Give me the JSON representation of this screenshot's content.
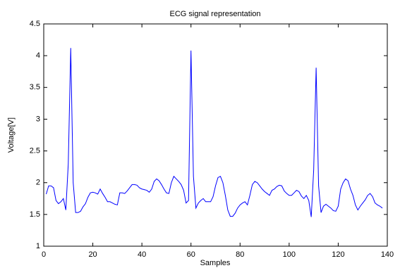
{
  "chart_data": {
    "type": "line",
    "title": "ECG signal representation",
    "xlabel": "Samples",
    "ylabel": "Voltage[V]",
    "x": [
      1,
      2,
      3,
      4,
      5,
      6,
      7,
      8,
      9,
      10,
      11,
      12,
      13,
      14,
      15,
      16,
      17,
      18,
      19,
      20,
      21,
      22,
      23,
      24,
      25,
      26,
      27,
      28,
      29,
      30,
      31,
      32,
      33,
      34,
      35,
      36,
      37,
      38,
      39,
      40,
      41,
      42,
      43,
      44,
      45,
      46,
      47,
      48,
      49,
      50,
      51,
      52,
      53,
      54,
      55,
      56,
      57,
      58,
      59,
      60,
      61,
      62,
      63,
      64,
      65,
      66,
      67,
      68,
      69,
      70,
      71,
      72,
      73,
      74,
      75,
      76,
      77,
      78,
      79,
      80,
      81,
      82,
      83,
      84,
      85,
      86,
      87,
      88,
      89,
      90,
      91,
      92,
      93,
      94,
      95,
      96,
      97,
      98,
      99,
      100,
      101,
      102,
      103,
      104,
      105,
      106,
      107,
      108,
      109,
      110,
      111,
      112,
      113,
      114,
      115,
      116,
      117,
      118,
      119,
      120,
      121,
      122,
      123,
      124,
      125,
      126,
      127,
      128,
      129,
      130,
      131,
      132,
      133,
      134,
      135,
      136,
      137,
      138
    ],
    "series": [
      {
        "name": "ECG",
        "color": "#0000ff",
        "values": [
          1.82,
          1.95,
          1.95,
          1.92,
          1.72,
          1.67,
          1.7,
          1.75,
          1.57,
          2.3,
          4.12,
          2.0,
          1.53,
          1.53,
          1.55,
          1.62,
          1.67,
          1.77,
          1.84,
          1.85,
          1.84,
          1.82,
          1.9,
          1.83,
          1.77,
          1.7,
          1.7,
          1.68,
          1.66,
          1.65,
          1.84,
          1.84,
          1.83,
          1.87,
          1.92,
          1.97,
          1.97,
          1.96,
          1.92,
          1.9,
          1.89,
          1.88,
          1.85,
          1.9,
          2.02,
          2.06,
          2.03,
          1.97,
          1.9,
          1.84,
          1.83,
          2.0,
          2.1,
          2.06,
          2.02,
          1.97,
          1.88,
          1.68,
          1.72,
          4.08,
          2.1,
          1.6,
          1.68,
          1.72,
          1.75,
          1.7,
          1.7,
          1.7,
          1.78,
          1.95,
          2.08,
          2.1,
          2.0,
          1.8,
          1.57,
          1.47,
          1.47,
          1.52,
          1.6,
          1.65,
          1.68,
          1.7,
          1.65,
          1.8,
          1.97,
          2.02,
          2.0,
          1.95,
          1.9,
          1.86,
          1.83,
          1.8,
          1.88,
          1.9,
          1.94,
          1.96,
          1.95,
          1.87,
          1.83,
          1.8,
          1.8,
          1.84,
          1.88,
          1.86,
          1.79,
          1.75,
          1.8,
          1.72,
          1.46,
          2.2,
          3.81,
          1.95,
          1.53,
          1.63,
          1.66,
          1.63,
          1.6,
          1.56,
          1.55,
          1.63,
          1.9,
          2.0,
          2.06,
          2.03,
          1.9,
          1.8,
          1.65,
          1.57,
          1.63,
          1.68,
          1.73,
          1.8,
          1.83,
          1.78,
          1.68,
          1.65,
          1.63,
          1.6
        ]
      }
    ],
    "xlim": [
      0,
      140
    ],
    "xticks": [
      0,
      20,
      40,
      60,
      80,
      100,
      120,
      140
    ],
    "ylim": [
      1,
      4.5
    ],
    "yticks": [
      1,
      1.5,
      2,
      2.5,
      3,
      3.5,
      4,
      4.5
    ]
  }
}
